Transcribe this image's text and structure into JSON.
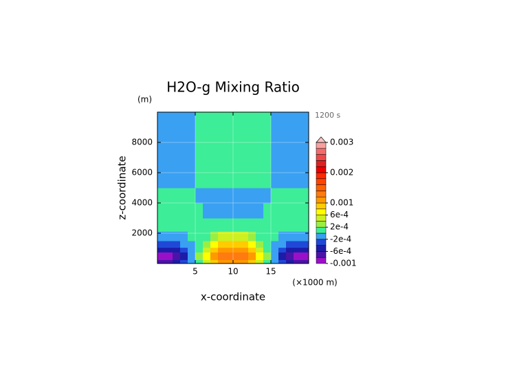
{
  "chart_data": {
    "type": "contour",
    "title": "H2O-g Mixing Ratio",
    "y_unit": "(m)",
    "time_label": "1200 s",
    "x_label": "x-coordinate",
    "x_unit": "(×1000 m)",
    "y_label": "z-coordinate",
    "x": [
      0.5,
      1.5,
      2.5,
      3.5,
      4.5,
      5.5,
      6.5,
      7.5,
      8.5,
      9.5,
      10.5,
      11.5,
      12.5,
      13.5,
      14.5,
      15.5,
      16.5,
      17.5,
      18.5,
      19.5
    ],
    "y": [
      125,
      375,
      625,
      875,
      1250,
      1750,
      2500,
      3500,
      4500,
      5500,
      6500,
      7500,
      8500,
      9500
    ],
    "z": [
      [
        -0.0007,
        -0.0007,
        -0.0005,
        -0.0003,
        -0.0001,
        0.0001,
        0.0005,
        0.0009,
        0.0011,
        0.0011,
        0.0011,
        0.0011,
        0.0009,
        0.0005,
        0.0001,
        -0.0001,
        -0.0003,
        -0.0005,
        -0.0007,
        -0.0007
      ],
      [
        -0.0009,
        -0.0009,
        -0.0007,
        -0.0005,
        -0.0001,
        0.0003,
        0.0007,
        0.0011,
        0.0013,
        0.0013,
        0.0013,
        0.0013,
        0.0011,
        0.0007,
        0.0003,
        -0.0001,
        -0.0005,
        -0.0007,
        -0.0009,
        -0.0009
      ],
      [
        -0.0009,
        -0.0009,
        -0.0007,
        -0.0005,
        -0.0001,
        0.0003,
        0.0007,
        0.0011,
        0.0013,
        0.0013,
        0.0013,
        0.0013,
        0.0011,
        0.0007,
        0.0003,
        -0.0001,
        -0.0005,
        -0.0007,
        -0.0009,
        -0.0009
      ],
      [
        -0.0005,
        -0.0005,
        -0.0005,
        -0.0003,
        -0.0001,
        0.0001,
        0.0005,
        0.0009,
        0.0011,
        0.0011,
        0.0011,
        0.0011,
        0.0009,
        0.0005,
        0.0001,
        -0.0001,
        -0.0003,
        -0.0005,
        -0.0005,
        -0.0005
      ],
      [
        -0.0003,
        -0.0003,
        -0.0003,
        -0.0001,
        -0.0001,
        0.0001,
        0.0003,
        0.0007,
        0.0009,
        0.0009,
        0.0009,
        0.0009,
        0.0007,
        0.0003,
        0.0001,
        -0.0001,
        -0.0001,
        -0.0003,
        -0.0003,
        -0.0003
      ],
      [
        -0.0001,
        -0.0001,
        -0.0001,
        -0.0001,
        0.0001,
        0.0001,
        0.0001,
        0.0003,
        0.0005,
        0.0005,
        0.0005,
        0.0005,
        0.0003,
        0.0001,
        0.0001,
        0.0001,
        -0.0001,
        -0.0001,
        -0.0001,
        -0.0001
      ],
      [
        0.0001,
        0.0001,
        0.0001,
        0.0001,
        0.0001,
        0.0001,
        0.0001,
        0.0001,
        0.0001,
        0.0001,
        0.0001,
        0.0001,
        0.0001,
        0.0001,
        0.0001,
        0.0001,
        0.0001,
        0.0001,
        0.0001,
        0.0001
      ],
      [
        0.0001,
        0.0001,
        0.0001,
        0.0001,
        0.0001,
        0.0001,
        -0.0001,
        -0.0001,
        -0.0001,
        -0.0001,
        -0.0001,
        -0.0001,
        -0.0001,
        -0.0001,
        0.0001,
        0.0001,
        0.0001,
        0.0001,
        0.0001,
        0.0001
      ],
      [
        0.0001,
        0.0001,
        0.0001,
        0.0001,
        0.0001,
        -0.0001,
        -0.0001,
        -0.0001,
        -0.0001,
        -0.0001,
        -0.0001,
        -0.0001,
        -0.0001,
        -0.0001,
        -0.0001,
        0.0001,
        0.0001,
        0.0001,
        0.0001,
        0.0001
      ],
      [
        -0.0001,
        -0.0001,
        -0.0001,
        -0.0001,
        -0.0001,
        0.0001,
        0.0001,
        0.0001,
        0.0001,
        0.0001,
        0.0001,
        0.0001,
        0.0001,
        0.0001,
        0.0001,
        -0.0001,
        -0.0001,
        -0.0001,
        -0.0001,
        -0.0001
      ],
      [
        -0.0001,
        -0.0001,
        -0.0001,
        -0.0001,
        -0.0001,
        0.0001,
        0.0001,
        0.0001,
        0.0001,
        0.0001,
        0.0001,
        0.0001,
        0.0001,
        0.0001,
        0.0001,
        -0.0001,
        -0.0001,
        -0.0001,
        -0.0001,
        -0.0001
      ],
      [
        -0.0001,
        -0.0001,
        -0.0001,
        -0.0001,
        -0.0001,
        0.0001,
        0.0001,
        0.0001,
        0.0001,
        0.0001,
        0.0001,
        0.0001,
        0.0001,
        0.0001,
        0.0001,
        -0.0001,
        -0.0001,
        -0.0001,
        -0.0001,
        -0.0001
      ],
      [
        -0.0001,
        -0.0001,
        -0.0001,
        -0.0001,
        -0.0001,
        0.0001,
        0.0001,
        0.0001,
        0.0001,
        0.0001,
        0.0001,
        0.0001,
        0.0001,
        0.0001,
        0.0001,
        -0.0001,
        -0.0001,
        -0.0001,
        -0.0001,
        -0.0001
      ],
      [
        -0.0001,
        -0.0001,
        -0.0001,
        -0.0001,
        -0.0001,
        0.0001,
        0.0001,
        0.0001,
        0.0001,
        0.0001,
        0.0001,
        0.0001,
        0.0001,
        0.0001,
        0.0001,
        -0.0001,
        -0.0001,
        -0.0001,
        -0.0001,
        -0.0001
      ]
    ],
    "xlim": [
      0,
      20
    ],
    "ylim": [
      0,
      10000
    ],
    "xticks": [
      5,
      10,
      15
    ],
    "yticks": [
      2000,
      4000,
      6000,
      8000
    ],
    "grid": true,
    "colorbar": {
      "levels": [
        -0.001,
        -0.0008,
        -0.0006,
        -0.0004,
        -0.0002,
        0,
        0.0002,
        0.0004,
        0.0006,
        0.0008,
        0.001,
        0.0012,
        0.0014,
        0.0016,
        0.0018,
        0.002,
        0.0022,
        0.0024,
        0.0026,
        0.0028,
        0.003
      ],
      "colors": [
        "#9a10c8",
        "#4a14a8",
        "#1c1ca8",
        "#2048d8",
        "#3aa0f2",
        "#3ded97",
        "#99ee44",
        "#ccf020",
        "#ffff00",
        "#ffcc00",
        "#ff9900",
        "#ff7a10",
        "#ff6000",
        "#ff4400",
        "#ff2a00",
        "#ee0000",
        "#dd2222",
        "#ee4848",
        "#f26c6c",
        "#f8a0a0"
      ],
      "extend_color": "#ffc4c4",
      "ticks": [
        0.003,
        0.002,
        0.001,
        {
          "value": 0.0006,
          "label": "6e-4"
        },
        {
          "value": 0.0002,
          "label": "2e-4"
        },
        {
          "value": -0.0002,
          "label": "-2e-4"
        },
        {
          "value": -0.0006,
          "label": "-6e-4"
        },
        -0.001
      ]
    }
  }
}
